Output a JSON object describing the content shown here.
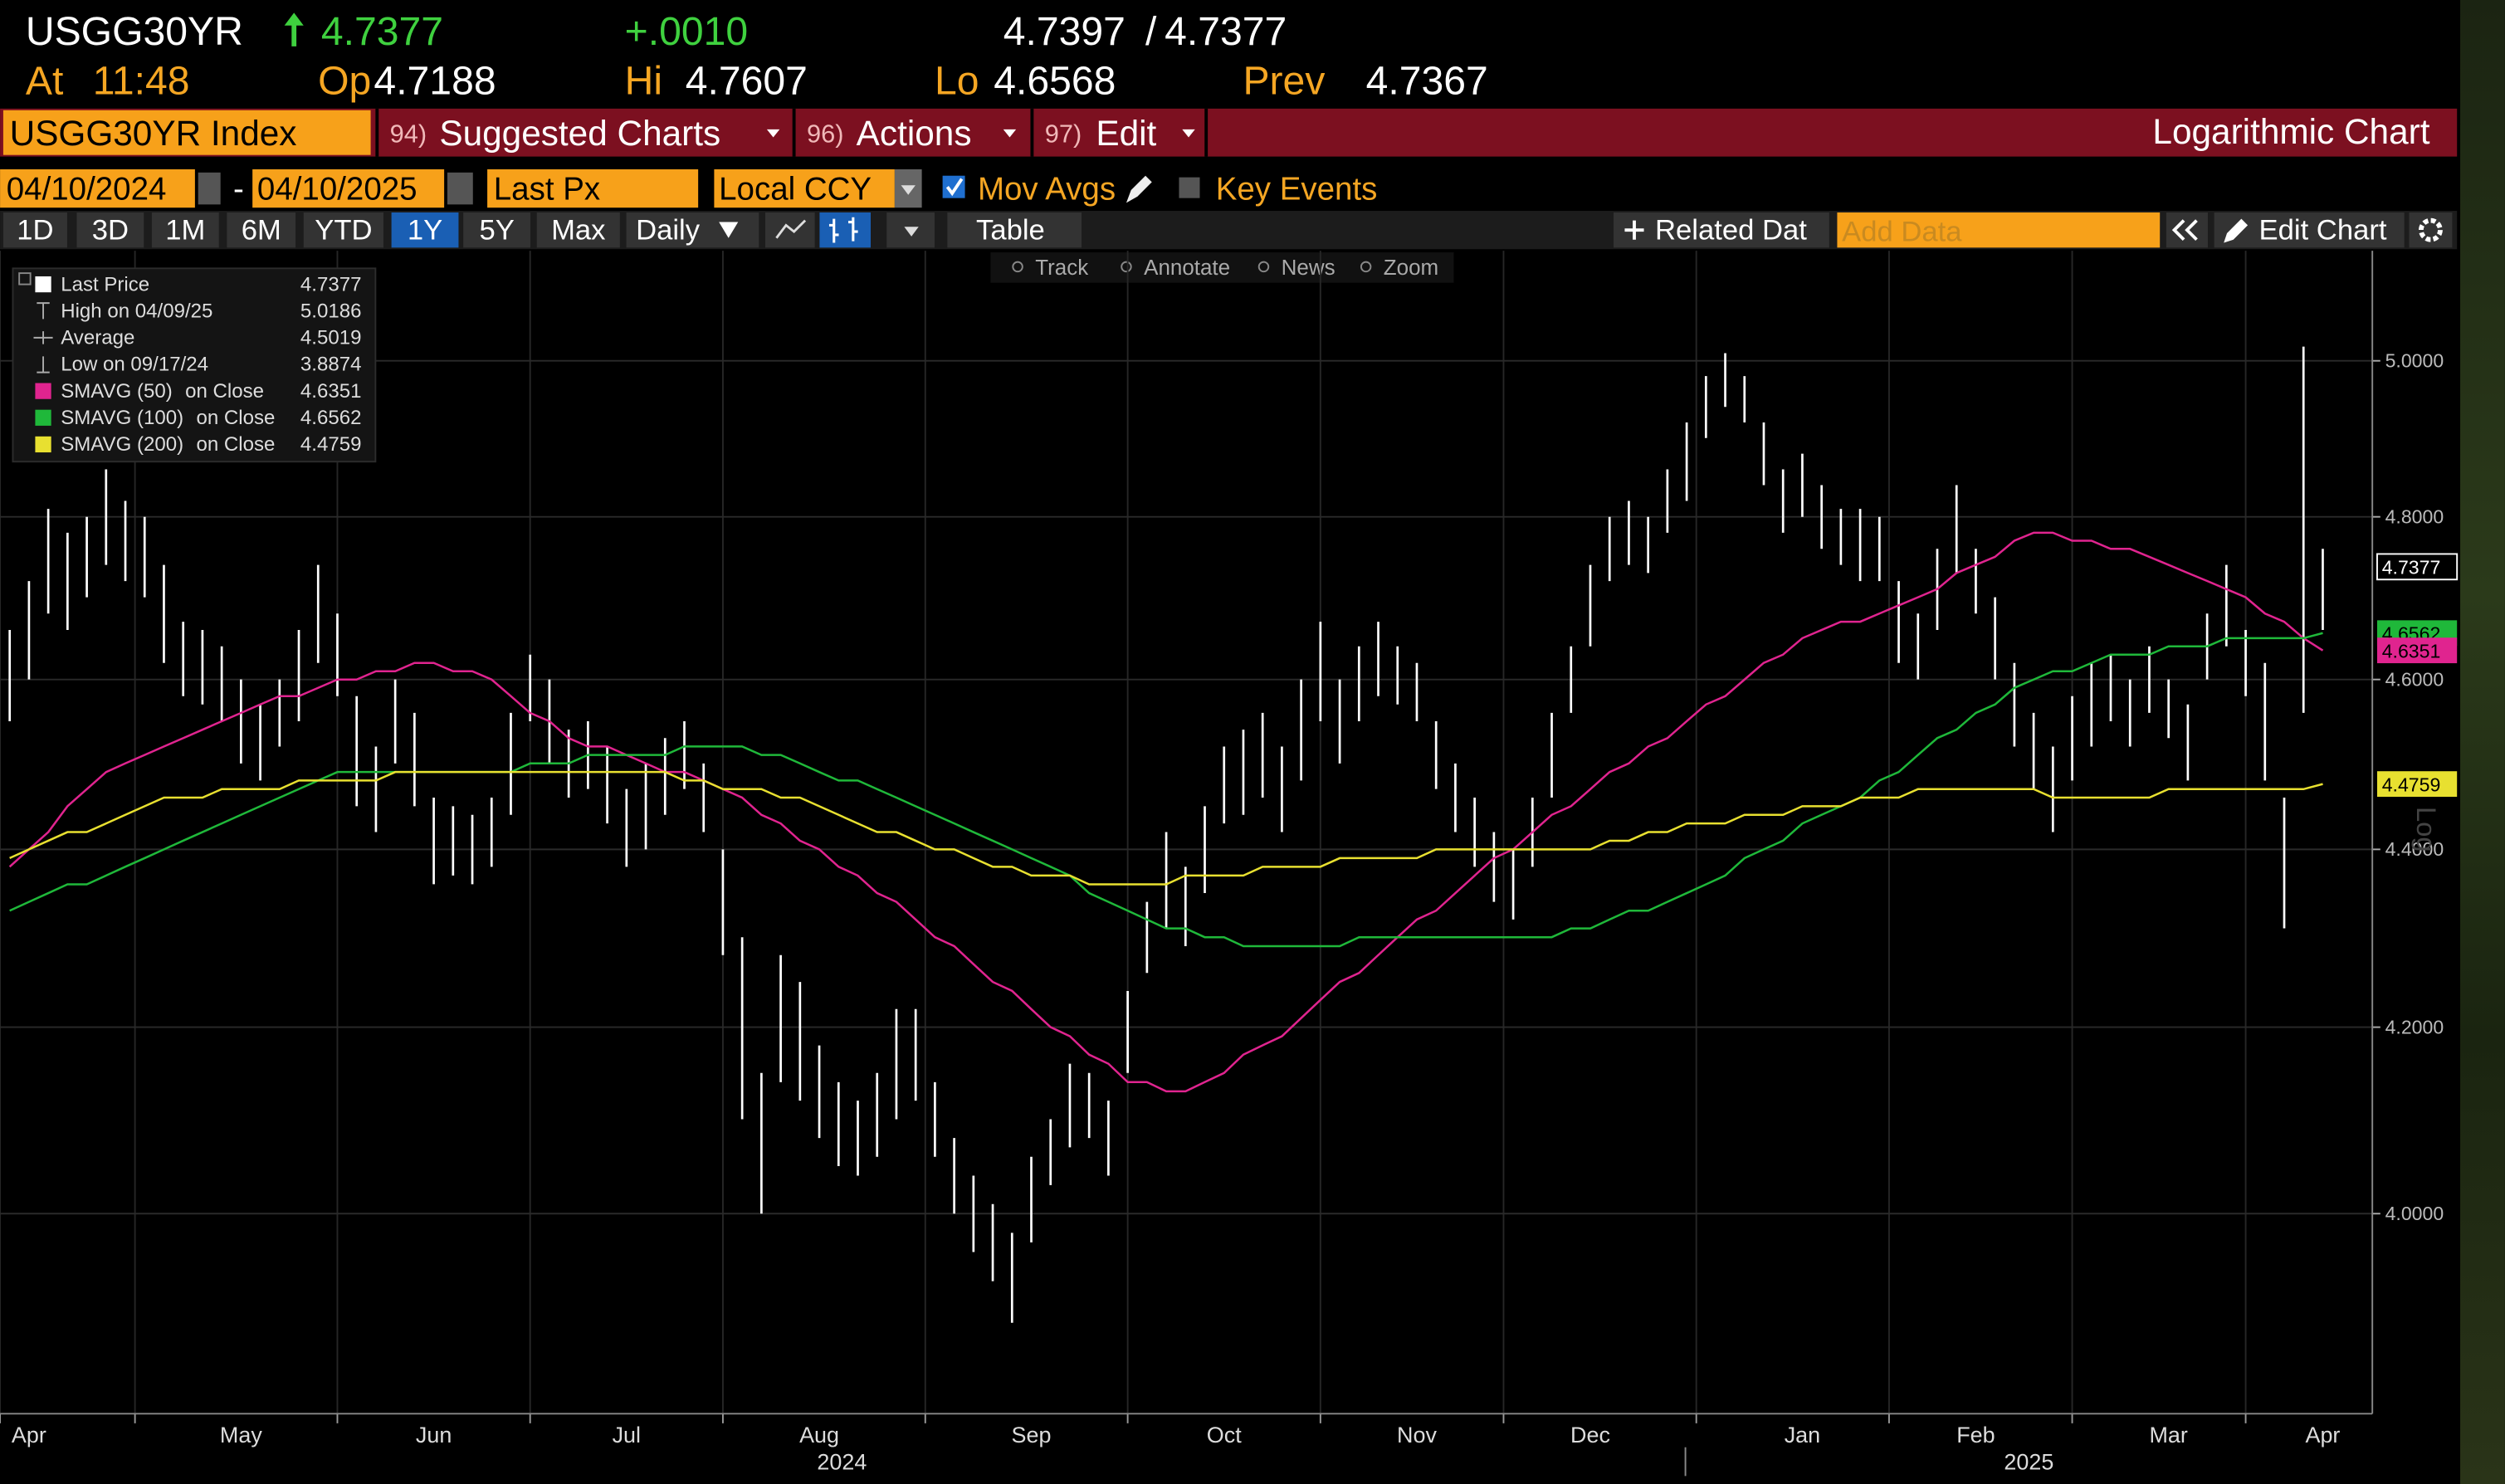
{
  "header": {
    "ticker": "USGG30YR",
    "last": "4.7377",
    "change": "+.0010",
    "bid": "4.7397",
    "sep": "/",
    "ask": "4.7377",
    "at_label": "At",
    "time": "11:48",
    "open_label": "Op",
    "open": "4.7188",
    "high_label": "Hi",
    "high": "4.7607",
    "low_label": "Lo",
    "low": "4.6568",
    "prev_label": "Prev",
    "prev": "4.7367"
  },
  "menu": {
    "security": "USGG30YR Index",
    "items": [
      {
        "code": "94)",
        "label": "Suggested Charts"
      },
      {
        "code": "96)",
        "label": "Actions"
      },
      {
        "code": "97)",
        "label": "Edit"
      }
    ],
    "mode": "Logarithmic Chart"
  },
  "settings": {
    "start": "04/10/2024",
    "dash": "-",
    "end": "04/10/2025",
    "field": "Last Px",
    "currency": "Local CCY",
    "mov_avgs": "Mov Avgs",
    "key_events": "Key Events"
  },
  "toolbar": {
    "periods": [
      "1D",
      "3D",
      "1M",
      "6M",
      "YTD",
      "1Y",
      "5Y",
      "Max"
    ],
    "active_period": 5,
    "frequency": "Daily",
    "table": "Table",
    "related": "Related Dat",
    "add_data": "Add Data",
    "edit_chart": "Edit Chart"
  },
  "chart_tools": [
    "Track",
    "Annotate",
    "News",
    "Zoom"
  ],
  "chart_data": {
    "type": "ohlc",
    "log": true,
    "grid": true,
    "categories": [
      null,
      "Apr",
      null,
      null,
      null,
      null,
      null,
      null,
      null,
      null,
      null,
      null,
      "May",
      null,
      null,
      null,
      null,
      null,
      null,
      null,
      null,
      null,
      "Jun",
      null,
      null,
      null,
      null,
      null,
      null,
      null,
      null,
      null,
      "Jul",
      null,
      null,
      null,
      null,
      null,
      null,
      null,
      null,
      null,
      "Aug",
      null,
      null,
      null,
      null,
      null,
      null,
      null,
      null,
      null,
      null,
      "Sep",
      null,
      null,
      null,
      null,
      null,
      null,
      null,
      null,
      null,
      "Oct",
      null,
      null,
      null,
      null,
      null,
      null,
      null,
      null,
      null,
      "Nov",
      null,
      null,
      null,
      null,
      null,
      null,
      null,
      null,
      "Dec",
      null,
      null,
      null,
      null,
      null,
      null,
      null,
      null,
      null,
      null,
      "Jan",
      null,
      null,
      null,
      null,
      null,
      null,
      null,
      null,
      "Feb",
      null,
      null,
      null,
      null,
      null,
      null,
      null,
      null,
      null,
      "Mar",
      null,
      null,
      null,
      null,
      null,
      null,
      null,
      "Apr"
    ],
    "year_labels": [
      "2024",
      "2025"
    ],
    "ylim": [
      3.796,
      5.146
    ],
    "yticks": [
      {
        "value": 4,
        "label": "4.0000"
      },
      {
        "value": 4.2,
        "label": "4.2000"
      },
      {
        "value": 4.4,
        "label": "4.4000"
      },
      {
        "value": 4.6,
        "label": "4.6000"
      },
      {
        "value": 4.8,
        "label": "4.8000"
      },
      {
        "value": 5,
        "label": "5.0000"
      }
    ],
    "scale_label": "Log",
    "price": {
      "name": "Last Price",
      "color": "#ffffff",
      "low": [
        4.55,
        4.6,
        4.68,
        4.66,
        4.7,
        4.74,
        4.72,
        4.7,
        4.62,
        4.58,
        4.57,
        4.55,
        4.5,
        4.48,
        4.52,
        4.55,
        4.62,
        4.58,
        4.45,
        4.42,
        4.5,
        4.45,
        4.36,
        4.37,
        4.36,
        4.38,
        4.44,
        4.55,
        4.5,
        4.46,
        4.47,
        4.43,
        4.38,
        4.4,
        4.44,
        4.47,
        4.42,
        4.28,
        4.1,
        4.0,
        4.14,
        4.12,
        4.08,
        4.05,
        4.04,
        4.06,
        4.1,
        4.12,
        4.06,
        4.0,
        3.96,
        3.93,
        3.8874,
        3.97,
        4.03,
        4.07,
        4.08,
        4.04,
        4.15,
        4.26,
        4.31,
        4.29,
        4.35,
        4.43,
        4.44,
        4.46,
        4.42,
        4.48,
        4.55,
        4.5,
        4.55,
        4.58,
        4.57,
        4.55,
        4.47,
        4.42,
        4.38,
        4.34,
        4.32,
        4.38,
        4.46,
        4.56,
        4.64,
        4.72,
        4.74,
        4.73,
        4.78,
        4.82,
        4.9,
        4.94,
        4.92,
        4.84,
        4.78,
        4.8,
        4.76,
        4.74,
        4.72,
        4.72,
        4.62,
        4.6,
        4.66,
        4.73,
        4.68,
        4.6,
        4.52,
        4.47,
        4.42,
        4.48,
        4.52,
        4.55,
        4.52,
        4.56,
        4.53,
        4.48,
        4.6,
        4.64,
        4.58,
        4.48,
        4.31,
        4.56,
        4.66
      ],
      "high": [
        4.66,
        4.72,
        4.81,
        4.78,
        4.8,
        4.86,
        4.82,
        4.8,
        4.74,
        4.67,
        4.66,
        4.64,
        4.6,
        4.57,
        4.6,
        4.66,
        4.74,
        4.68,
        4.58,
        4.52,
        4.6,
        4.56,
        4.46,
        4.45,
        4.44,
        4.46,
        4.56,
        4.63,
        4.6,
        4.54,
        4.55,
        4.52,
        4.47,
        4.5,
        4.53,
        4.55,
        4.5,
        4.4,
        4.3,
        4.15,
        4.28,
        4.25,
        4.18,
        4.14,
        4.12,
        4.15,
        4.22,
        4.22,
        4.14,
        4.08,
        4.04,
        4.01,
        3.98,
        4.06,
        4.1,
        4.16,
        4.15,
        4.12,
        4.24,
        4.34,
        4.42,
        4.38,
        4.45,
        4.52,
        4.54,
        4.56,
        4.52,
        4.6,
        4.67,
        4.6,
        4.64,
        4.67,
        4.64,
        4.62,
        4.55,
        4.5,
        4.46,
        4.42,
        4.4,
        4.46,
        4.56,
        4.64,
        4.74,
        4.8,
        4.82,
        4.8,
        4.86,
        4.92,
        4.98,
        5.01,
        4.98,
        4.92,
        4.86,
        4.88,
        4.84,
        4.81,
        4.81,
        4.8,
        4.72,
        4.68,
        4.76,
        4.84,
        4.76,
        4.7,
        4.62,
        4.56,
        4.52,
        4.58,
        4.62,
        4.63,
        4.6,
        4.64,
        4.6,
        4.57,
        4.68,
        4.74,
        4.66,
        4.62,
        4.46,
        5.0186,
        4.76
      ]
    },
    "stats": [
      {
        "label": "Last Price",
        "value": "4.7377"
      },
      {
        "label": "High on 04/09/25",
        "value": "5.0186"
      },
      {
        "label": "Average",
        "value": "4.5019"
      },
      {
        "label": "Low on 09/17/24",
        "value": "3.8874"
      }
    ],
    "series": [
      {
        "name": "SMAVG (50)",
        "suffix": "on Close",
        "legend_value": "4.6351",
        "color": "#e0248f",
        "values": [
          4.38,
          4.4,
          4.42,
          4.45,
          4.47,
          4.49,
          4.5,
          4.51,
          4.52,
          4.53,
          4.54,
          4.55,
          4.56,
          4.57,
          4.58,
          4.58,
          4.59,
          4.6,
          4.6,
          4.61,
          4.61,
          4.62,
          4.62,
          4.61,
          4.61,
          4.6,
          4.58,
          4.56,
          4.55,
          4.53,
          4.52,
          4.52,
          4.51,
          4.5,
          4.49,
          4.49,
          4.48,
          4.47,
          4.46,
          4.44,
          4.43,
          4.41,
          4.4,
          4.38,
          4.37,
          4.35,
          4.34,
          4.32,
          4.3,
          4.29,
          4.27,
          4.25,
          4.24,
          4.22,
          4.2,
          4.19,
          4.17,
          4.16,
          4.14,
          4.14,
          4.13,
          4.13,
          4.14,
          4.15,
          4.17,
          4.18,
          4.19,
          4.21,
          4.23,
          4.25,
          4.26,
          4.28,
          4.3,
          4.32,
          4.33,
          4.35,
          4.37,
          4.39,
          4.4,
          4.42,
          4.44,
          4.45,
          4.47,
          4.49,
          4.5,
          4.52,
          4.53,
          4.55,
          4.57,
          4.58,
          4.6,
          4.62,
          4.63,
          4.65,
          4.66,
          4.67,
          4.67,
          4.68,
          4.69,
          4.7,
          4.71,
          4.73,
          4.74,
          4.75,
          4.77,
          4.78,
          4.78,
          4.77,
          4.77,
          4.76,
          4.76,
          4.75,
          4.74,
          4.73,
          4.72,
          4.71,
          4.7,
          4.68,
          4.67,
          4.65,
          4.6351
        ]
      },
      {
        "name": "SMAVG (100)",
        "suffix": "on Close",
        "legend_value": "4.6562",
        "color": "#1fb83a",
        "values": [
          4.33,
          4.34,
          4.35,
          4.36,
          4.36,
          4.37,
          4.38,
          4.39,
          4.4,
          4.41,
          4.42,
          4.43,
          4.44,
          4.45,
          4.46,
          4.47,
          4.48,
          4.49,
          4.49,
          4.49,
          4.49,
          4.49,
          4.49,
          4.49,
          4.49,
          4.49,
          4.49,
          4.5,
          4.5,
          4.5,
          4.51,
          4.51,
          4.51,
          4.51,
          4.51,
          4.52,
          4.52,
          4.52,
          4.52,
          4.51,
          4.51,
          4.5,
          4.49,
          4.48,
          4.48,
          4.47,
          4.46,
          4.45,
          4.44,
          4.43,
          4.42,
          4.41,
          4.4,
          4.39,
          4.38,
          4.37,
          4.35,
          4.34,
          4.33,
          4.32,
          4.31,
          4.31,
          4.3,
          4.3,
          4.29,
          4.29,
          4.29,
          4.29,
          4.29,
          4.29,
          4.3,
          4.3,
          4.3,
          4.3,
          4.3,
          4.3,
          4.3,
          4.3,
          4.3,
          4.3,
          4.3,
          4.31,
          4.31,
          4.32,
          4.33,
          4.33,
          4.34,
          4.35,
          4.36,
          4.37,
          4.39,
          4.4,
          4.41,
          4.43,
          4.44,
          4.45,
          4.46,
          4.48,
          4.49,
          4.51,
          4.53,
          4.54,
          4.56,
          4.57,
          4.59,
          4.6,
          4.61,
          4.61,
          4.62,
          4.63,
          4.63,
          4.63,
          4.64,
          4.64,
          4.64,
          4.65,
          4.65,
          4.65,
          4.65,
          4.65,
          4.6562
        ]
      },
      {
        "name": "SMAVG (200)",
        "suffix": "on Close",
        "legend_value": "4.4759",
        "color": "#e8e030",
        "values": [
          4.39,
          4.4,
          4.41,
          4.42,
          4.42,
          4.43,
          4.44,
          4.45,
          4.46,
          4.46,
          4.46,
          4.47,
          4.47,
          4.47,
          4.47,
          4.48,
          4.48,
          4.48,
          4.48,
          4.48,
          4.49,
          4.49,
          4.49,
          4.49,
          4.49,
          4.49,
          4.49,
          4.49,
          4.49,
          4.49,
          4.49,
          4.49,
          4.49,
          4.49,
          4.49,
          4.48,
          4.48,
          4.47,
          4.47,
          4.47,
          4.46,
          4.46,
          4.45,
          4.44,
          4.43,
          4.42,
          4.42,
          4.41,
          4.4,
          4.4,
          4.39,
          4.38,
          4.38,
          4.37,
          4.37,
          4.37,
          4.36,
          4.36,
          4.36,
          4.36,
          4.36,
          4.37,
          4.37,
          4.37,
          4.37,
          4.38,
          4.38,
          4.38,
          4.38,
          4.39,
          4.39,
          4.39,
          4.39,
          4.39,
          4.4,
          4.4,
          4.4,
          4.4,
          4.4,
          4.4,
          4.4,
          4.4,
          4.4,
          4.41,
          4.41,
          4.42,
          4.42,
          4.43,
          4.43,
          4.43,
          4.44,
          4.44,
          4.44,
          4.45,
          4.45,
          4.45,
          4.46,
          4.46,
          4.46,
          4.47,
          4.47,
          4.47,
          4.47,
          4.47,
          4.47,
          4.47,
          4.46,
          4.46,
          4.46,
          4.46,
          4.46,
          4.46,
          4.47,
          4.47,
          4.47,
          4.47,
          4.47,
          4.47,
          4.47,
          4.47,
          4.4759
        ]
      }
    ],
    "end_tags": [
      {
        "value": 4.7377,
        "label": "4.7377",
        "color": "#ffffff",
        "style": "outline"
      },
      {
        "value": 4.6562,
        "label": "4.6562",
        "color": "#1fb83a",
        "style": "filled"
      },
      {
        "value": 4.6351,
        "label": "4.6351",
        "color": "#e0248f",
        "style": "filled"
      },
      {
        "value": 4.4759,
        "label": "4.4759",
        "color": "#e8e030",
        "style": "filled"
      }
    ]
  }
}
